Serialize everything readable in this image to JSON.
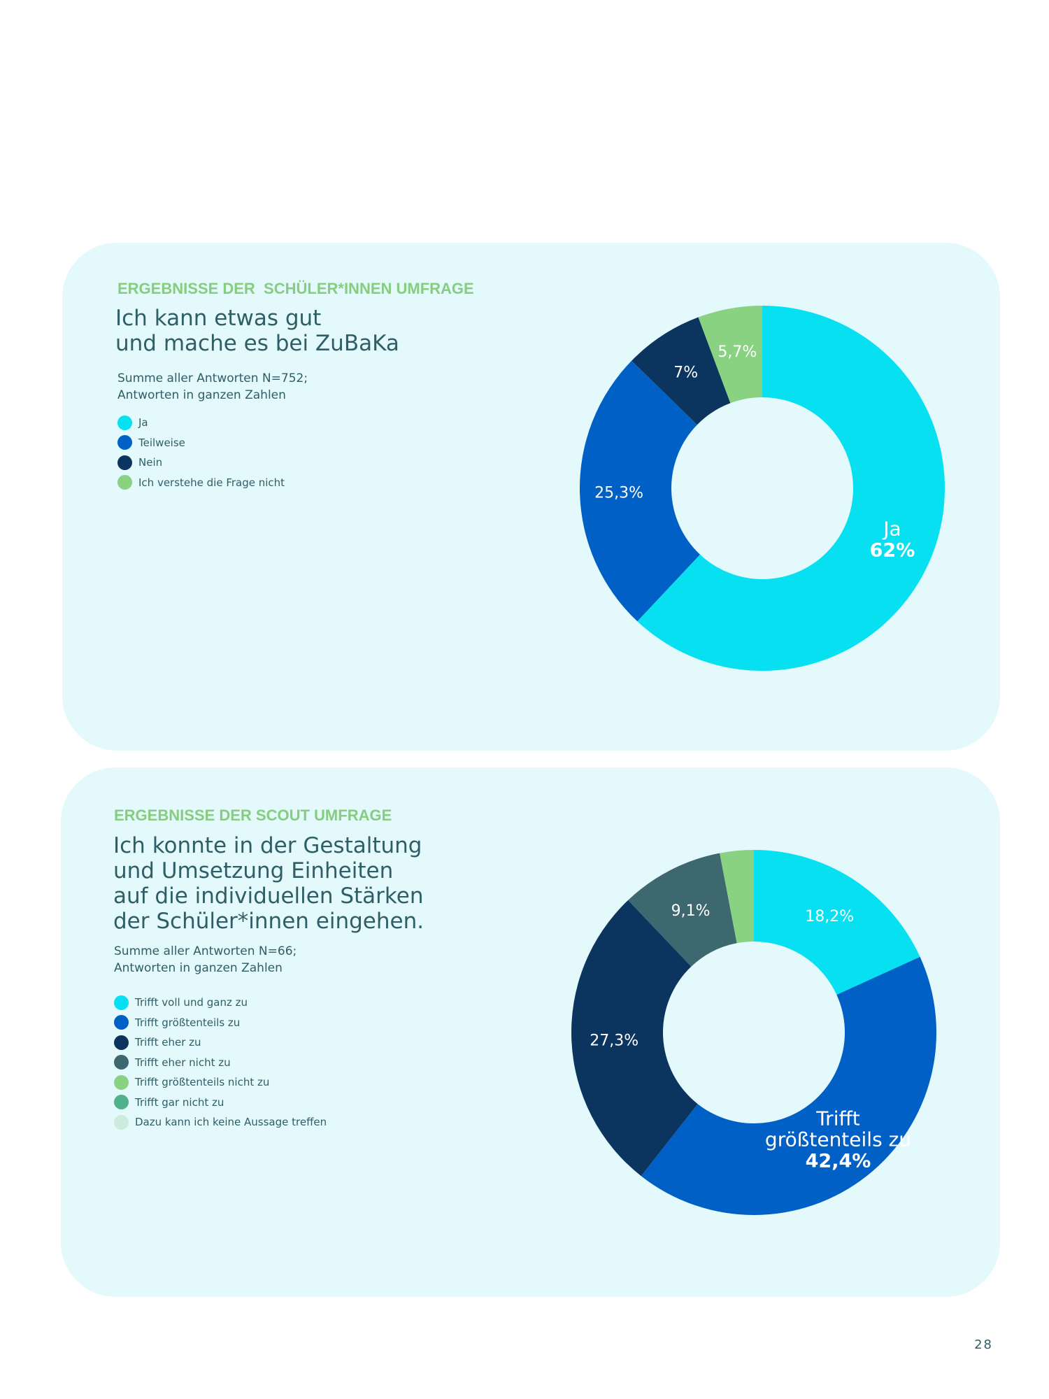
{
  "page_number": "28",
  "sections": [
    {
      "eyebrow": "ERGEBNISSE DER  SCHÜLER*INNEN UMFRAGE",
      "heading": "Ich kann etwas gut\nund mache es bei ZuBaKa",
      "note": "Summe aller Antworten N=752;\nAntworten in ganzen Zahlen",
      "legend": [
        {
          "label": "Ja",
          "color": "#07e0f0"
        },
        {
          "label": "Teilweise",
          "color": "#0160c5"
        },
        {
          "label": "Nein",
          "color": "#0b355e"
        },
        {
          "label": "Ich verstehe die Frage nicht",
          "color": "#88d282"
        }
      ]
    },
    {
      "eyebrow": "ERGEBNISSE DER SCOUT UMFRAGE",
      "heading": "Ich konnte in der Gestaltung\nund Umsetzung  Einheiten\nauf die individuellen Stärken\nder Schüler*innen eingehen.",
      "note": "Summe aller Antworten N=66;\nAntworten in ganzen Zahlen",
      "legend": [
        {
          "label": "Trifft voll und ganz zu",
          "color": "#07e0f0"
        },
        {
          "label": "Trifft größtenteils zu",
          "color": "#0160c5"
        },
        {
          "label": "Trifft eher zu",
          "color": "#0b355e"
        },
        {
          "label": "Trifft eher nicht zu",
          "color": "#3d6870"
        },
        {
          "label": "Trifft größtenteils  nicht zu",
          "color": "#88d282"
        },
        {
          "label": "Trifft gar nicht zu",
          "color": "#4fb28c"
        },
        {
          "label": "Dazu kann ich keine Aussage treffen",
          "color": "#cdebdc"
        }
      ]
    }
  ],
  "chart_data": [
    {
      "type": "pie",
      "donut": true,
      "slices": [
        {
          "name": "Ja",
          "value": 62,
          "color": "#07e0f0",
          "label_lines": [
            "Ja"
          ],
          "label_value": "62%",
          "label_bold": true
        },
        {
          "name": "Teilweise",
          "value": 25.3,
          "color": "#0160c5",
          "label_lines": [],
          "label_value": "25,3%",
          "label_bold": false
        },
        {
          "name": "Nein",
          "value": 7,
          "color": "#0b355e",
          "label_lines": [],
          "label_value": "7%",
          "label_bold": false
        },
        {
          "name": "Ich verstehe die Frage nicht",
          "value": 5.7,
          "color": "#88d282",
          "label_lines": [],
          "label_value": "5,7%",
          "label_bold": false
        }
      ]
    },
    {
      "type": "pie",
      "donut": true,
      "slices": [
        {
          "name": "Trifft voll und ganz zu",
          "value": 18.2,
          "color": "#07e0f0",
          "label_lines": [],
          "label_value": "18,2%",
          "label_bold": false
        },
        {
          "name": "Trifft größtenteils zu",
          "value": 42.4,
          "color": "#0160c5",
          "label_lines": [
            "Trifft",
            "größtenteils zu"
          ],
          "label_value": "42,4%",
          "label_bold": true
        },
        {
          "name": "Trifft eher zu",
          "value": 27.3,
          "color": "#0b355e",
          "label_lines": [],
          "label_value": "27,3%",
          "label_bold": false
        },
        {
          "name": "Trifft eher nicht zu",
          "value": 9.1,
          "color": "#3d6870",
          "label_lines": [],
          "label_value": "9,1%",
          "label_bold": false
        },
        {
          "name": "Trifft größtenteils  nicht zu",
          "value": 3.0,
          "color": "#88d282",
          "label_lines": [],
          "label_value": "",
          "label_bold": false
        }
      ]
    }
  ]
}
